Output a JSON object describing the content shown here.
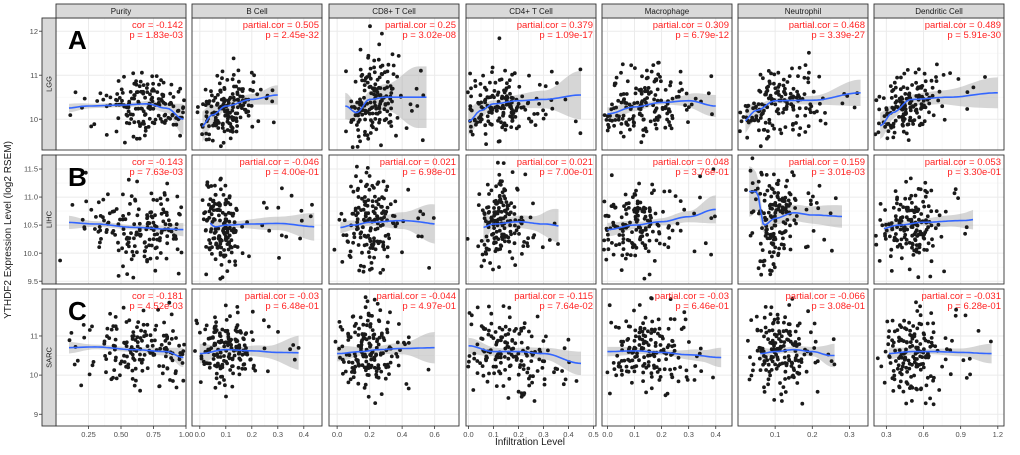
{
  "chart_data": {
    "type": "scatter",
    "title": "",
    "xlabel": "Infiltration Level",
    "ylabel": "YTHDF2 Expression Level (log2 RSEM)",
    "columns": [
      "Purity",
      "B Cell",
      "CD8+ T Cell",
      "CD4+ T Cell",
      "Macrophage",
      "Neutrophil",
      "Dendritic Cell"
    ],
    "column_xlim": [
      [
        0.0,
        1.0
      ],
      [
        -0.03,
        0.47
      ],
      [
        -0.05,
        0.75
      ],
      [
        -0.01,
        0.51
      ],
      [
        -0.02,
        0.46
      ],
      [
        0.0,
        0.35
      ],
      [
        0.2,
        1.25
      ]
    ],
    "column_xticks": [
      [
        "0.25",
        "0.50",
        "0.75",
        "1.00"
      ],
      [
        "0.0",
        "0.1",
        "0.2",
        "0.3",
        "0.4"
      ],
      [
        "0.0",
        "0.2",
        "0.4",
        "0.6"
      ],
      [
        "0.0",
        "0.1",
        "0.2",
        "0.3",
        "0.4",
        "0.5"
      ],
      [
        "0.0",
        "0.1",
        "0.2",
        "0.3",
        "0.4"
      ],
      [
        "0.1",
        "0.2",
        "0.3"
      ],
      [
        "0.3",
        "0.6",
        "0.9",
        "1.2"
      ]
    ],
    "rows": [
      {
        "letter": "A",
        "name": "LGG",
        "ylim": [
          9.3,
          12.3
        ],
        "yticks": [
          "10",
          "11",
          "12"
        ],
        "stats": [
          {
            "l1": "cor = -0.142",
            "l2": "p = 1.83e-03"
          },
          {
            "l1": "partial.cor = 0.505",
            "l2": "p = 2.45e-32"
          },
          {
            "l1": "partial.cor = 0.25",
            "l2": "p = 3.02e-08"
          },
          {
            "l1": "partial.cor = 0.379",
            "l2": "p = 1.09e-17"
          },
          {
            "l1": "partial.cor = 0.309",
            "l2": "p = 6.79e-12"
          },
          {
            "l1": "partial.cor = 0.468",
            "l2": "p = 3.39e-27"
          },
          {
            "l1": "partial.cor = 0.489",
            "l2": "p = 5.91e-30"
          }
        ]
      },
      {
        "letter": "B",
        "name": "LIHC",
        "ylim": [
          9.45,
          11.75
        ],
        "yticks": [
          "9.5",
          "10.0",
          "10.5",
          "11.0",
          "11.5"
        ],
        "stats": [
          {
            "l1": "cor = -0.143",
            "l2": "p = 7.63e-03"
          },
          {
            "l1": "partial.cor = -0.046",
            "l2": "p = 4.00e-01"
          },
          {
            "l1": "partial.cor = 0.021",
            "l2": "p = 6.98e-01"
          },
          {
            "l1": "partial.cor = 0.021",
            "l2": "p = 7.00e-01"
          },
          {
            "l1": "partial.cor = 0.048",
            "l2": "p = 3.76e-01"
          },
          {
            "l1": "partial.cor = 0.159",
            "l2": "p = 3.01e-03"
          },
          {
            "l1": "partial.cor = 0.053",
            "l2": "p = 3.30e-01"
          }
        ]
      },
      {
        "letter": "C",
        "name": "SARC",
        "ylim": [
          8.7,
          12.2
        ],
        "yticks": [
          "9",
          "10",
          "11"
        ],
        "stats": [
          {
            "l1": "cor = -0.181",
            "l2": "p = 4.52e-03"
          },
          {
            "l1": "partial.cor = -0.03",
            "l2": "p = 6.48e-01"
          },
          {
            "l1": "partial.cor = -0.044",
            "l2": "p = 4.97e-01"
          },
          {
            "l1": "partial.cor = -0.115",
            "l2": "p = 7.64e-02"
          },
          {
            "l1": "partial.cor = -0.03",
            "l2": "p = 6.46e-01"
          },
          {
            "l1": "partial.cor = -0.066",
            "l2": "p = 3.08e-01"
          },
          {
            "l1": "partial.cor = -0.031",
            "l2": "p = 6.28e-01"
          }
        ]
      }
    ],
    "fits": [
      [
        {
          "x": [
            0.07,
            0.25,
            0.5,
            0.7,
            0.85,
            0.98
          ],
          "y": [
            10.25,
            10.3,
            10.32,
            10.35,
            10.25,
            10.0
          ],
          "x0": 0.1,
          "x1": 0.98,
          "cx": 0.72,
          "cy": 10.3,
          "sx": 0.17,
          "sy": 0.33
        },
        {
          "x": [
            0.0,
            0.05,
            0.1,
            0.2,
            0.3
          ],
          "y": [
            9.8,
            10.1,
            10.3,
            10.45,
            10.55
          ],
          "x0": 0.01,
          "x1": 0.3,
          "cx": 0.1,
          "cy": 10.3,
          "sx": 0.055,
          "sy": 0.36
        },
        {
          "x": [
            0.05,
            0.12,
            0.2,
            0.3,
            0.5
          ],
          "y": [
            10.3,
            10.15,
            10.45,
            10.5,
            10.5
          ],
          "x0": 0.05,
          "x1": 0.55,
          "cx": 0.22,
          "cy": 10.6,
          "sx": 0.07,
          "sy": 0.55
        },
        {
          "x": [
            0.0,
            0.05,
            0.1,
            0.2,
            0.3,
            0.45
          ],
          "y": [
            9.95,
            10.2,
            10.35,
            10.42,
            10.45,
            10.55
          ],
          "x0": 0.0,
          "x1": 0.45,
          "cx": 0.12,
          "cy": 10.3,
          "sx": 0.07,
          "sy": 0.38
        },
        {
          "x": [
            0.0,
            0.1,
            0.2,
            0.3,
            0.4
          ],
          "y": [
            10.12,
            10.28,
            10.38,
            10.42,
            10.3
          ],
          "x0": 0.0,
          "x1": 0.4,
          "cx": 0.12,
          "cy": 10.3,
          "sx": 0.08,
          "sy": 0.37
        },
        {
          "x": [
            0.01,
            0.05,
            0.1,
            0.2,
            0.33
          ],
          "y": [
            9.92,
            10.2,
            10.42,
            10.43,
            10.6
          ],
          "x0": 0.02,
          "x1": 0.33,
          "cx": 0.1,
          "cy": 10.3,
          "sx": 0.06,
          "sy": 0.37
        },
        {
          "x": [
            0.25,
            0.35,
            0.5,
            0.8,
            1.2
          ],
          "y": [
            9.85,
            10.15,
            10.45,
            10.5,
            10.6
          ],
          "x0": 0.25,
          "x1": 1.2,
          "cx": 0.45,
          "cy": 10.35,
          "sx": 0.13,
          "sy": 0.38
        }
      ],
      [
        {
          "x": [
            0.07,
            0.3,
            0.6,
            0.85,
            0.98
          ],
          "y": [
            10.55,
            10.52,
            10.46,
            10.43,
            10.42
          ],
          "x0": 0.1,
          "x1": 0.98,
          "cx": 0.65,
          "cy": 10.45,
          "sx": 0.22,
          "sy": 0.33
        },
        {
          "x": [
            0.02,
            0.06,
            0.1,
            0.2,
            0.3,
            0.45
          ],
          "y": [
            10.6,
            10.47,
            10.5,
            10.52,
            10.53,
            10.47
          ],
          "x0": 0.04,
          "x1": 0.44,
          "cx": 0.08,
          "cy": 10.5,
          "sx": 0.035,
          "sy": 0.4
        },
        {
          "x": [
            0.0,
            0.1,
            0.2,
            0.4,
            0.7
          ],
          "y": [
            10.45,
            10.5,
            10.55,
            10.58,
            10.5
          ],
          "x0": 0.02,
          "x1": 0.6,
          "cx": 0.2,
          "cy": 10.5,
          "sx": 0.08,
          "sy": 0.38
        },
        {
          "x": [
            0.01,
            0.05,
            0.1,
            0.2,
            0.3,
            0.42
          ],
          "y": [
            10.62,
            10.45,
            10.52,
            10.56,
            10.52,
            10.45
          ],
          "x0": 0.06,
          "x1": 0.36,
          "cx": 0.12,
          "cy": 10.5,
          "sx": 0.05,
          "sy": 0.4
        },
        {
          "x": [
            0.0,
            0.1,
            0.2,
            0.3,
            0.4
          ],
          "y": [
            10.42,
            10.5,
            10.56,
            10.65,
            10.78
          ],
          "x0": 0.0,
          "x1": 0.4,
          "cx": 0.1,
          "cy": 10.5,
          "sx": 0.07,
          "sy": 0.35
        },
        {
          "x": [
            0.05,
            0.07,
            0.1,
            0.15,
            0.2,
            0.3
          ],
          "y": [
            11.1,
            10.5,
            10.62,
            10.72,
            10.68,
            10.65
          ],
          "x0": 0.03,
          "x1": 0.28,
          "cx": 0.1,
          "cy": 10.4,
          "sx": 0.03,
          "sy": 0.42
        },
        {
          "x": [
            0.25,
            0.4,
            0.6,
            0.9,
            1.2
          ],
          "y": [
            10.43,
            10.5,
            10.55,
            10.58,
            10.65
          ],
          "x0": 0.28,
          "x1": 1.0,
          "cx": 0.5,
          "cy": 10.5,
          "sx": 0.12,
          "sy": 0.35
        }
      ],
      [
        {
          "x": [
            0.07,
            0.3,
            0.6,
            0.85,
            0.98
          ],
          "y": [
            10.7,
            10.72,
            10.65,
            10.6,
            10.45
          ],
          "x0": 0.1,
          "x1": 0.98,
          "cx": 0.7,
          "cy": 10.6,
          "sx": 0.2,
          "sy": 0.45
        },
        {
          "x": [
            0.0,
            0.1,
            0.2,
            0.3,
            0.4
          ],
          "y": [
            10.55,
            10.65,
            10.62,
            10.58,
            10.57
          ],
          "x0": 0.0,
          "x1": 0.38,
          "cx": 0.1,
          "cy": 10.6,
          "sx": 0.06,
          "sy": 0.5
        },
        {
          "x": [
            0.0,
            0.15,
            0.25,
            0.4,
            0.6
          ],
          "y": [
            10.55,
            10.6,
            10.65,
            10.68,
            10.7
          ],
          "x0": 0.0,
          "x1": 0.6,
          "cx": 0.2,
          "cy": 10.6,
          "sx": 0.09,
          "sy": 0.5
        },
        {
          "x": [
            0.0,
            0.1,
            0.2,
            0.3,
            0.45
          ],
          "y": [
            10.75,
            10.6,
            10.6,
            10.55,
            10.3
          ],
          "x0": 0.0,
          "x1": 0.45,
          "cx": 0.15,
          "cy": 10.55,
          "sx": 0.09,
          "sy": 0.5
        },
        {
          "x": [
            0.0,
            0.1,
            0.2,
            0.3,
            0.42
          ],
          "y": [
            10.6,
            10.62,
            10.58,
            10.52,
            10.45
          ],
          "x0": 0.0,
          "x1": 0.42,
          "cx": 0.15,
          "cy": 10.55,
          "sx": 0.09,
          "sy": 0.5
        },
        {
          "x": [
            0.06,
            0.1,
            0.15,
            0.2,
            0.25
          ],
          "y": [
            10.55,
            10.6,
            10.65,
            10.6,
            10.5
          ],
          "x0": 0.06,
          "x1": 0.26,
          "cx": 0.11,
          "cy": 10.55,
          "sx": 0.04,
          "sy": 0.5
        },
        {
          "x": [
            0.3,
            0.5,
            0.7,
            0.9,
            1.15
          ],
          "y": [
            10.55,
            10.6,
            10.6,
            10.58,
            10.55
          ],
          "x0": 0.32,
          "x1": 1.15,
          "cx": 0.5,
          "cy": 10.6,
          "sx": 0.12,
          "sy": 0.5
        }
      ]
    ],
    "bands": [
      [
        [
          [
            0.08,
            0.1
          ],
          [
            0.3,
            0.05
          ],
          [
            0.6,
            0.05
          ],
          [
            0.85,
            0.1
          ],
          [
            0.98,
            0.35
          ]
        ],
        [
          [
            0.0,
            0.35
          ],
          [
            0.1,
            0.1
          ],
          [
            0.2,
            0.12
          ],
          [
            0.3,
            0.22
          ]
        ],
        [
          [
            0.05,
            0.3
          ],
          [
            0.15,
            0.15
          ],
          [
            0.3,
            0.3
          ],
          [
            0.5,
            0.7
          ]
        ],
        [
          [
            0.0,
            0.3
          ],
          [
            0.1,
            0.08
          ],
          [
            0.3,
            0.2
          ],
          [
            0.45,
            0.55
          ]
        ],
        [
          [
            0.0,
            0.15
          ],
          [
            0.2,
            0.05
          ],
          [
            0.4,
            0.25
          ]
        ],
        [
          [
            0.0,
            0.3
          ],
          [
            0.1,
            0.06
          ],
          [
            0.2,
            0.1
          ],
          [
            0.33,
            0.3
          ]
        ],
        [
          [
            0.25,
            0.3
          ],
          [
            0.4,
            0.1
          ],
          [
            0.7,
            0.15
          ],
          [
            1.2,
            0.35
          ]
        ]
      ],
      [
        [
          [
            0.08,
            0.12
          ],
          [
            0.3,
            0.05
          ],
          [
            0.6,
            0.04
          ],
          [
            0.85,
            0.06
          ],
          [
            0.98,
            0.12
          ]
        ],
        [
          [
            0.04,
            0.15
          ],
          [
            0.1,
            0.05
          ],
          [
            0.3,
            0.12
          ],
          [
            0.45,
            0.25
          ]
        ],
        [
          [
            0.02,
            0.1
          ],
          [
            0.2,
            0.06
          ],
          [
            0.4,
            0.15
          ],
          [
            0.6,
            0.35
          ]
        ],
        [
          [
            0.05,
            0.35
          ],
          [
            0.1,
            0.08
          ],
          [
            0.25,
            0.12
          ],
          [
            0.36,
            0.3
          ]
        ],
        [
          [
            0.0,
            0.12
          ],
          [
            0.15,
            0.05
          ],
          [
            0.3,
            0.1
          ],
          [
            0.4,
            0.25
          ]
        ],
        [
          [
            0.03,
            0.45
          ],
          [
            0.08,
            0.1
          ],
          [
            0.18,
            0.15
          ],
          [
            0.28,
            0.2
          ]
        ],
        [
          [
            0.25,
            0.12
          ],
          [
            0.5,
            0.05
          ],
          [
            0.8,
            0.1
          ],
          [
            1.2,
            0.25
          ]
        ]
      ],
      [
        [
          [
            0.08,
            0.15
          ],
          [
            0.3,
            0.06
          ],
          [
            0.6,
            0.06
          ],
          [
            0.85,
            0.1
          ],
          [
            0.98,
            0.25
          ]
        ],
        [
          [
            0.0,
            0.25
          ],
          [
            0.1,
            0.07
          ],
          [
            0.25,
            0.15
          ],
          [
            0.4,
            0.45
          ]
        ],
        [
          [
            0.0,
            0.2
          ],
          [
            0.2,
            0.08
          ],
          [
            0.4,
            0.15
          ],
          [
            0.6,
            0.4
          ]
        ],
        [
          [
            0.0,
            0.2
          ],
          [
            0.15,
            0.08
          ],
          [
            0.3,
            0.15
          ],
          [
            0.45,
            0.3
          ]
        ],
        [
          [
            0.0,
            0.12
          ],
          [
            0.2,
            0.06
          ],
          [
            0.35,
            0.15
          ],
          [
            0.42,
            0.25
          ]
        ],
        [
          [
            0.06,
            0.15
          ],
          [
            0.1,
            0.06
          ],
          [
            0.2,
            0.12
          ],
          [
            0.26,
            0.3
          ]
        ],
        [
          [
            0.3,
            0.15
          ],
          [
            0.6,
            0.06
          ],
          [
            0.9,
            0.1
          ],
          [
            1.15,
            0.25
          ]
        ]
      ]
    ],
    "colors": {
      "strip_fill": "#d9d9d9",
      "panel_fill": "#ffffff",
      "grid_major": "#ebebeb",
      "grid_minor": "#f5f5f5",
      "border": "#333333",
      "point": "#1a1a1a",
      "line": "#3366ff",
      "band": "#999999",
      "stat_text": "#ff2222"
    }
  }
}
